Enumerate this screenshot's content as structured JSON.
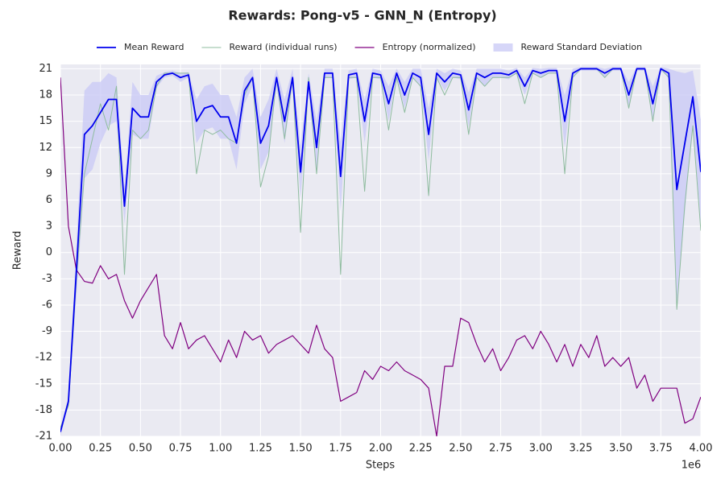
{
  "chart_data": {
    "type": "line",
    "title": "Rewards: Pong-v5 - GNN_N (Entropy)",
    "x_label": "Steps",
    "x_offset_label": "1e6",
    "y_label": "Reward",
    "x": [
      0,
      0.05,
      0.1,
      0.15,
      0.2,
      0.25,
      0.3,
      0.35,
      0.4,
      0.45,
      0.5,
      0.55,
      0.6,
      0.65,
      0.7,
      0.75,
      0.8,
      0.85,
      0.9,
      0.95,
      1.0,
      1.05,
      1.1,
      1.15,
      1.2,
      1.25,
      1.3,
      1.35,
      1.4,
      1.45,
      1.5,
      1.55,
      1.6,
      1.65,
      1.7,
      1.75,
      1.8,
      1.85,
      1.9,
      1.95,
      2.0,
      2.05,
      2.1,
      2.15,
      2.2,
      2.25,
      2.3,
      2.35,
      2.4,
      2.45,
      2.5,
      2.55,
      2.6,
      2.65,
      2.7,
      2.75,
      2.8,
      2.85,
      2.9,
      2.95,
      3.0,
      3.05,
      3.1,
      3.15,
      3.2,
      3.25,
      3.3,
      3.35,
      3.4,
      3.45,
      3.5,
      3.55,
      3.6,
      3.65,
      3.7,
      3.75,
      3.8,
      3.85,
      3.9,
      3.95,
      4.0
    ],
    "series": [
      {
        "name": "Mean Reward",
        "color": "#0000ee",
        "style": "line",
        "width": 1.8,
        "values": [
          -20.5,
          -17,
          -2,
          13.5,
          14.5,
          16,
          17.5,
          17.5,
          5.3,
          16.5,
          15.5,
          15.5,
          19.5,
          20.3,
          20.5,
          20,
          20.3,
          15,
          16.5,
          16.8,
          15.5,
          15.5,
          12.5,
          18.5,
          20,
          12.5,
          14.5,
          20,
          15,
          20,
          9.2,
          19.5,
          12,
          20.5,
          20.5,
          8.7,
          20.3,
          20.5,
          15,
          20.5,
          20.3,
          17,
          20.5,
          18,
          20.5,
          20,
          13.5,
          20.5,
          19.5,
          20.5,
          20.3,
          16.3,
          20.5,
          20,
          20.5,
          20.5,
          20.3,
          20.8,
          19,
          20.8,
          20.5,
          20.8,
          20.8,
          15,
          20.5,
          21,
          21,
          21,
          20.5,
          21,
          21,
          18,
          21,
          21,
          17,
          21,
          20.5,
          7.2,
          12.5,
          17.8,
          9.2
        ]
      },
      {
        "name": "Reward (individual runs)",
        "color": "#8fbc9f",
        "style": "line",
        "width": 1,
        "values": [
          -20,
          -17.5,
          -3,
          9,
          13,
          17,
          14,
          19,
          -2.5,
          14,
          13,
          14,
          19,
          20.5,
          20.5,
          20.5,
          20.5,
          9,
          14,
          13.5,
          14,
          13,
          12.5,
          18,
          20,
          7.5,
          11,
          20,
          13,
          20,
          2.3,
          20,
          9,
          20,
          20,
          -2.5,
          20,
          20,
          7,
          20,
          20,
          14,
          20,
          16,
          20,
          19,
          6.5,
          20,
          18,
          20,
          20,
          13.5,
          20,
          19,
          20,
          20,
          20,
          20.5,
          17,
          20.5,
          20,
          20.5,
          20.5,
          9,
          20,
          21,
          21,
          21,
          20,
          21,
          21,
          16.5,
          21,
          21,
          15,
          21,
          20,
          -6.5,
          5.5,
          14.5,
          2.5
        ]
      },
      {
        "name": "Entropy (normalized)",
        "color": "#800080",
        "style": "line",
        "width": 1.2,
        "values": [
          20,
          3,
          -2,
          -3.3,
          -3.5,
          -1.5,
          -3,
          -2.5,
          -5.5,
          -7.5,
          -5.5,
          -4,
          -2.5,
          -9.5,
          -11,
          -8,
          -11,
          -10,
          -9.5,
          -11,
          -12.5,
          -10,
          -12,
          -9,
          -10,
          -9.5,
          -11.5,
          -10.5,
          -10,
          -9.5,
          -10.5,
          -11.5,
          -8.3,
          -11,
          -12,
          -17,
          -16.5,
          -16,
          -13.5,
          -14.5,
          -13,
          -13.5,
          -12.5,
          -13.5,
          -14,
          -14.5,
          -15.5,
          -21,
          -13,
          -13,
          -7.5,
          -8,
          -10.5,
          -12.5,
          -11,
          -13.5,
          -12,
          -10,
          -9.5,
          -11,
          -9,
          -10.5,
          -12.5,
          -10.5,
          -13,
          -10.5,
          -12,
          -9.5,
          -13,
          -12,
          -13,
          -12,
          -15.5,
          -14,
          -17,
          -15.5,
          -15.5,
          -15.5,
          -19.5,
          -19,
          -16.5
        ]
      },
      {
        "name": "Reward Standard Deviation",
        "color": "#c8c8f5",
        "style": "band",
        "around": "Mean Reward",
        "values": [
          0.5,
          0.5,
          3,
          5,
          5,
          3.5,
          3,
          2.5,
          2,
          3,
          2.5,
          2.5,
          0.7,
          0.3,
          0.3,
          0.5,
          0.3,
          2.5,
          2.5,
          2.5,
          2.5,
          2.5,
          3,
          1.5,
          1,
          3,
          3,
          1,
          2.5,
          1,
          3,
          1,
          3,
          0.5,
          0.5,
          4,
          0.5,
          0.5,
          2.5,
          0.5,
          0.5,
          2,
          0.5,
          1.5,
          0.5,
          1,
          3,
          0.5,
          1,
          0.5,
          0.5,
          2,
          0.5,
          1,
          0.5,
          0.5,
          0.5,
          0.3,
          1,
          0.3,
          0.5,
          0.3,
          0.3,
          3,
          0.5,
          0.2,
          0.2,
          0.2,
          0.5,
          0.2,
          0.2,
          1.5,
          0.2,
          0.2,
          2,
          0.2,
          0.5,
          13.5,
          8,
          3,
          6
        ]
      }
    ],
    "xlim": [
      0,
      4
    ],
    "xticks": [
      {
        "value": 0,
        "label": "0.00"
      },
      {
        "value": 0.25,
        "label": "0.25"
      },
      {
        "value": 0.5,
        "label": "0.50"
      },
      {
        "value": 0.75,
        "label": "0.75"
      },
      {
        "value": 1,
        "label": "1.00"
      },
      {
        "value": 1.25,
        "label": "1.25"
      },
      {
        "value": 1.5,
        "label": "1.50"
      },
      {
        "value": 1.75,
        "label": "1.75"
      },
      {
        "value": 2,
        "label": "2.00"
      },
      {
        "value": 2.25,
        "label": "2.25"
      },
      {
        "value": 2.5,
        "label": "2.50"
      },
      {
        "value": 2.75,
        "label": "2.75"
      },
      {
        "value": 3,
        "label": "3.00"
      },
      {
        "value": 3.25,
        "label": "3.25"
      },
      {
        "value": 3.5,
        "label": "3.50"
      },
      {
        "value": 3.75,
        "label": "3.75"
      },
      {
        "value": 4,
        "label": "4.00"
      }
    ],
    "ylim": [
      -21,
      21.5
    ],
    "yticks": [
      -21,
      -18,
      -15,
      -12,
      -9,
      -6,
      -3,
      0,
      3,
      6,
      9,
      12,
      15,
      18,
      21
    ],
    "grid": true,
    "legend": "top"
  }
}
